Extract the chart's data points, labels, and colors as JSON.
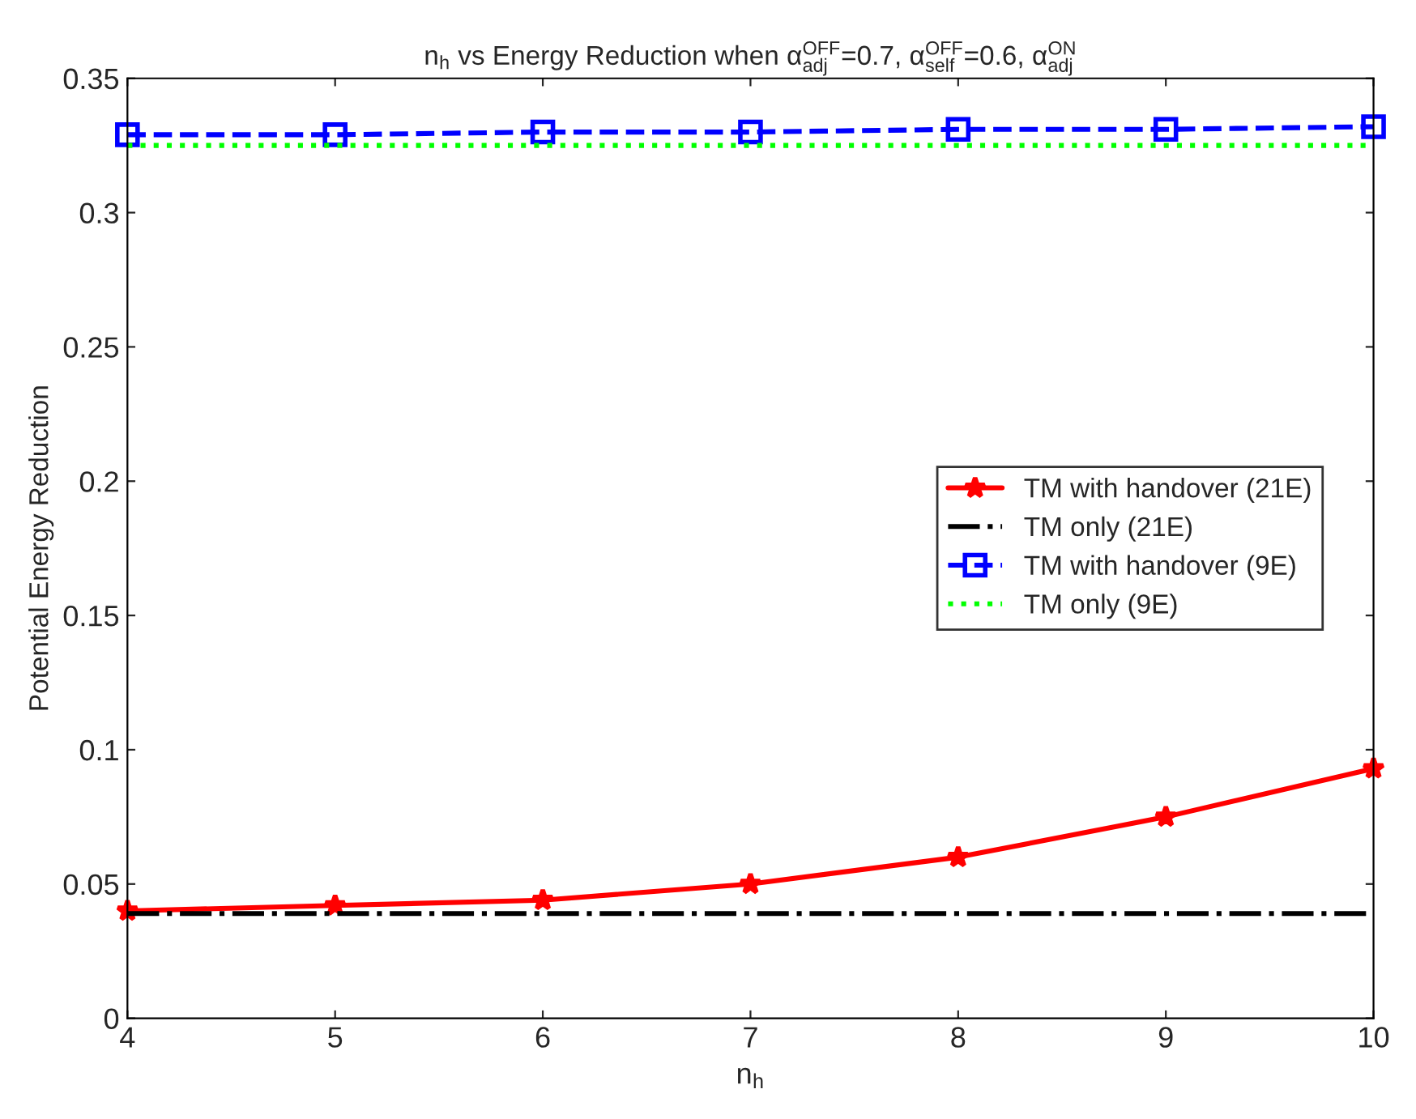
{
  "chart_data": {
    "type": "line",
    "title": "n$_{h}$ vs Energy Reduction when α$^{OFF}$$_{adj}$=0.7, α$^{OFF}$$_{self}$=0.6, α$^{ON}$$_{adj}$",
    "xlabel": "n$_{h}$",
    "ylabel": "Potential Energy Reduction",
    "x": [
      4,
      5,
      6,
      7,
      8,
      9,
      10
    ],
    "series": [
      {
        "name": "TM with handover (21E)",
        "color": "#ff0000",
        "marker": "star",
        "line_style": "solid",
        "values": [
          0.04,
          0.042,
          0.044,
          0.05,
          0.06,
          0.075,
          0.093
        ]
      },
      {
        "name": "TM only (21E)",
        "color": "#000000",
        "marker": "none",
        "line_style": "dashdot",
        "values": [
          0.039,
          0.039,
          0.039,
          0.039,
          0.039,
          0.039,
          0.039
        ]
      },
      {
        "name": "TM with handover (9E)",
        "color": "#0000ff",
        "marker": "square",
        "line_style": "dashed",
        "values": [
          0.329,
          0.329,
          0.33,
          0.33,
          0.331,
          0.331,
          0.332
        ]
      },
      {
        "name": "TM only (9E)",
        "color": "#00ff00",
        "marker": "none",
        "line_style": "dotted",
        "values": [
          0.325,
          0.325,
          0.325,
          0.325,
          0.325,
          0.325,
          0.325
        ]
      }
    ],
    "xlim": [
      4,
      10
    ],
    "xticks": [
      4,
      5,
      6,
      7,
      8,
      9,
      10
    ],
    "ylim": [
      0,
      0.35
    ],
    "yticks": [
      0,
      0.05,
      0.1,
      0.15,
      0.2,
      0.25,
      0.3,
      0.35
    ],
    "grid": false,
    "legend": "right"
  }
}
